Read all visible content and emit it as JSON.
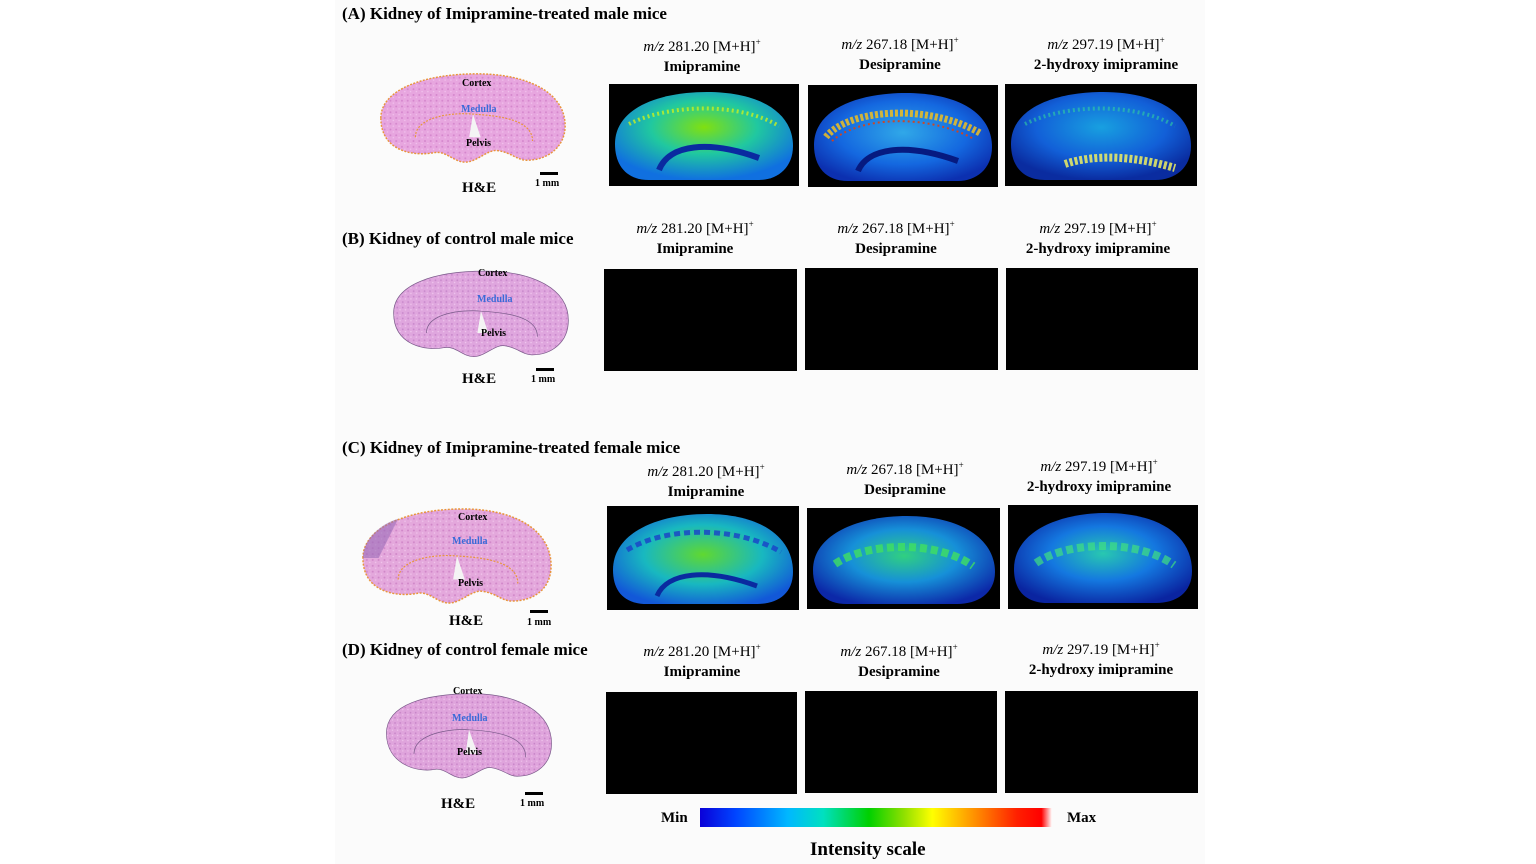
{
  "panels": [
    {
      "title": "(A) Kidney of Imipramine-treated male mice",
      "he": {
        "cortex": "Cortex",
        "medulla": "Medulla",
        "pelvis": "Pelvis",
        "label": "H&E",
        "scale": "1 mm"
      },
      "images": [
        {
          "mz_prefix": "m/z",
          "mz_value": "281.20 [M+H]",
          "mz_sup": "+",
          "name": "Imipramine"
        },
        {
          "mz_prefix": "m/z",
          "mz_value": "267.18 [M+H]",
          "mz_sup": "+",
          "name": "Desipramine"
        },
        {
          "mz_prefix": "m/z",
          "mz_value": "297.19 [M+H]",
          "mz_sup": "+",
          "name": "2-hydroxy imipramine"
        }
      ]
    },
    {
      "title": "(B) Kidney of control male mice",
      "he": {
        "cortex": "Cortex",
        "medulla": "Medulla",
        "pelvis": "Pelvis",
        "label": "H&E",
        "scale": "1 mm"
      },
      "images": [
        {
          "mz_prefix": "m/z",
          "mz_value": "281.20 [M+H]",
          "mz_sup": "+",
          "name": "Imipramine"
        },
        {
          "mz_prefix": "m/z",
          "mz_value": "267.18 [M+H]",
          "mz_sup": "+",
          "name": "Desipramine"
        },
        {
          "mz_prefix": "m/z",
          "mz_value": "297.19 [M+H]",
          "mz_sup": "+",
          "name": "2-hydroxy imipramine"
        }
      ]
    },
    {
      "title": "(C) Kidney of Imipramine-treated female mice",
      "he": {
        "cortex": "Cortex",
        "medulla": "Medulla",
        "pelvis": "Pelvis",
        "label": "H&E",
        "scale": "1 mm"
      },
      "images": [
        {
          "mz_prefix": "m/z",
          "mz_value": "281.20 [M+H]",
          "mz_sup": "+",
          "name": "Imipramine"
        },
        {
          "mz_prefix": "m/z",
          "mz_value": "267.18 [M+H]",
          "mz_sup": "+",
          "name": "Desipramine"
        },
        {
          "mz_prefix": "m/z",
          "mz_value": "297.19 [M+H]",
          "mz_sup": "+",
          "name": "2-hydroxy imipramine"
        }
      ]
    },
    {
      "title": "(D) Kidney of control female mice",
      "he": {
        "cortex": "Cortex",
        "medulla": "Medulla",
        "pelvis": "Pelvis",
        "label": "H&E",
        "scale": "1 mm"
      },
      "images": [
        {
          "mz_prefix": "m/z",
          "mz_value": "281.20 [M+H]",
          "mz_sup": "+",
          "name": "Imipramine"
        },
        {
          "mz_prefix": "m/z",
          "mz_value": "267.18 [M+H]",
          "mz_sup": "+",
          "name": "Desipramine"
        },
        {
          "mz_prefix": "m/z",
          "mz_value": "297.19 [M+H]",
          "mz_sup": "+",
          "name": "2-hydroxy imipramine"
        }
      ]
    }
  ],
  "colorbar": {
    "min": "Min",
    "max": "Max",
    "title": "Intensity scale"
  },
  "colors": {
    "he_tissue": "#e39ad6",
    "he_outline": "#e8963a",
    "medulla_text": "#3a6ad8",
    "control_bg": "#000000"
  }
}
